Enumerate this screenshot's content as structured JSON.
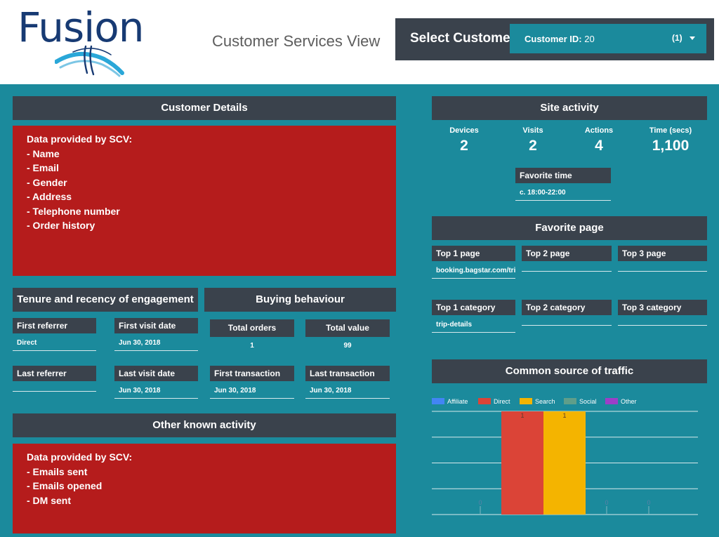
{
  "header": {
    "logo_text": "Fusion",
    "title": "Customer Services View",
    "select_label": "Select Customer:",
    "customer_label": "Customer ID:",
    "customer_value": "20",
    "selection_count": "(1)"
  },
  "customer_details": {
    "title": "Customer Details",
    "lines": [
      "Data provided by SCV:",
      "- Name",
      "- Email",
      "- Gender",
      "- Address",
      "- Telephone number",
      "- Order history"
    ]
  },
  "tenure": {
    "title": "Tenure and recency of engagement",
    "first_referrer": {
      "label": "First referrer",
      "value": "Direct"
    },
    "first_visit": {
      "label": "First visit date",
      "value": "Jun 30, 2018"
    },
    "last_referrer": {
      "label": "Last referrer",
      "value": ""
    },
    "last_visit": {
      "label": "Last visit date",
      "value": "Jun 30, 2018"
    }
  },
  "buying": {
    "title": "Buying behaviour",
    "total_orders": {
      "label": "Total orders",
      "value": "1"
    },
    "total_value": {
      "label": "Total value",
      "value": "99"
    },
    "first_transaction": {
      "label": "First transaction",
      "value": "Jun 30, 2018"
    },
    "last_transaction": {
      "label": "Last transaction",
      "value": "Jun 30, 2018"
    }
  },
  "other_activity": {
    "title": "Other known activity",
    "lines": [
      "Data provided by SCV:",
      "- Emails sent",
      "- Emails opened",
      "- DM sent"
    ]
  },
  "site_activity": {
    "title": "Site activity",
    "devices": {
      "label": "Devices",
      "value": "2"
    },
    "visits": {
      "label": "Visits",
      "value": "2"
    },
    "actions": {
      "label": "Actions",
      "value": "4"
    },
    "time": {
      "label": "Time (secs)",
      "value": "1,100"
    },
    "favorite_time": {
      "label": "Favorite time",
      "value": "c. 18:00-22:00"
    }
  },
  "favorite_page": {
    "title": "Favorite page",
    "top1_page": {
      "label": "Top 1 page",
      "value": "booking.bagstar.com/tri..."
    },
    "top2_page": {
      "label": "Top 2 page",
      "value": ""
    },
    "top3_page": {
      "label": "Top 3 page",
      "value": ""
    },
    "top1_category": {
      "label": "Top 1 category",
      "value": "trip-details"
    },
    "top2_category": {
      "label": "Top 2 category",
      "value": ""
    },
    "top3_category": {
      "label": "Top 3 category",
      "value": ""
    }
  },
  "traffic": {
    "title": "Common source of traffic"
  },
  "colors": {
    "header_bg": "#ffffff",
    "page_bg": "#1b8a9c",
    "section_head": "#3a424c",
    "placeholder_red": "#b51c1c",
    "logo_navy": "#173a73",
    "logo_cyan": "#2aa7d8"
  },
  "chart_data": {
    "type": "bar",
    "title": "Common source of traffic",
    "legend_position": "top-left",
    "grid": true,
    "categories": [
      "Affiliate",
      "Direct",
      "Search",
      "Social",
      "Other"
    ],
    "series": [
      {
        "name": "Affiliate",
        "color": "#4285f4",
        "values": [
          0,
          null,
          null,
          null,
          null
        ]
      },
      {
        "name": "Direct",
        "color": "#db4437",
        "values": [
          null,
          1,
          null,
          null,
          null
        ]
      },
      {
        "name": "Search",
        "color": "#f4b400",
        "values": [
          null,
          null,
          1,
          null,
          null
        ]
      },
      {
        "name": "Social",
        "color": "#5f9e8a",
        "values": [
          null,
          null,
          null,
          0,
          null
        ]
      },
      {
        "name": "Other",
        "color": "#9c3fc8",
        "values": [
          null,
          null,
          null,
          null,
          0
        ]
      }
    ],
    "data_labels": [
      "0",
      "1",
      "1",
      "0",
      "0"
    ],
    "ylim": [
      0,
      1
    ]
  }
}
